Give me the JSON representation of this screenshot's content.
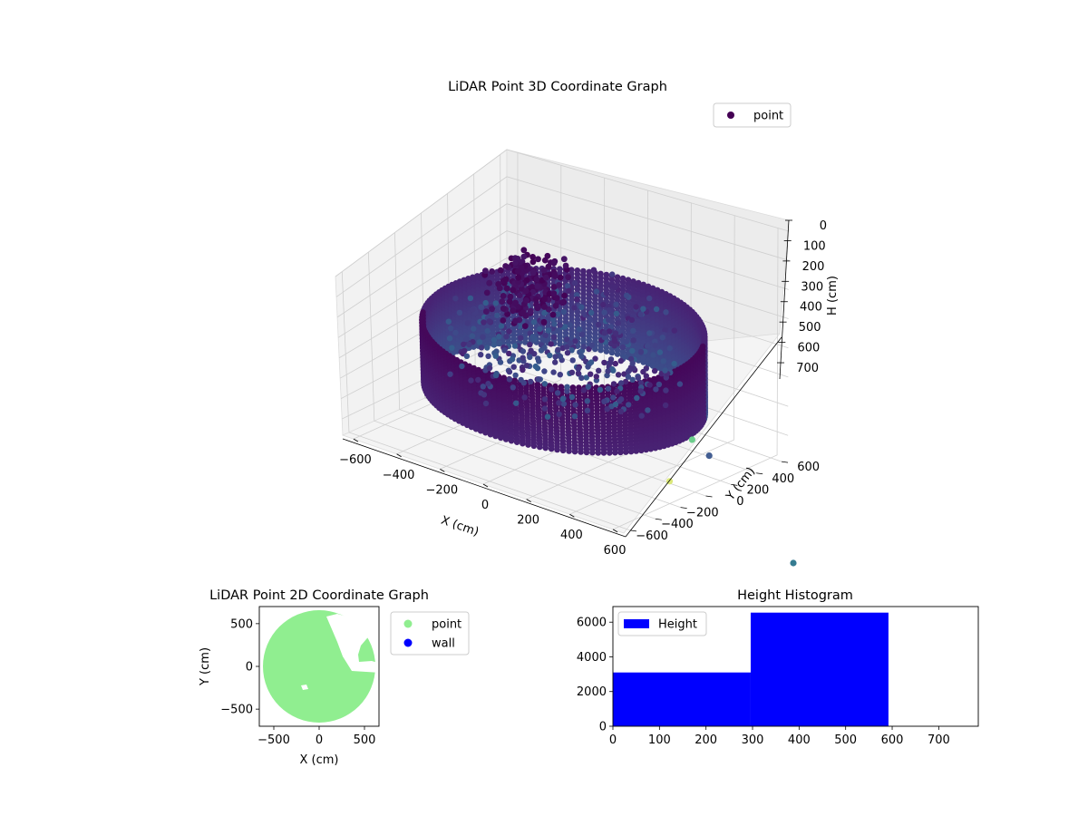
{
  "chart_data": [
    {
      "type": "scatter3d",
      "title": "LiDAR Point 3D Coordinate Graph",
      "xlabel": "X (cm)",
      "ylabel": "Y (cm)",
      "zlabel": "H (cm)",
      "xlim": [
        -650,
        650
      ],
      "ylim": [
        -650,
        650
      ],
      "zlim": [
        0,
        780
      ],
      "z_inverted": true,
      "x_ticks": [
        -600,
        -400,
        -200,
        0,
        200,
        400,
        600
      ],
      "y_ticks": [
        -600,
        -400,
        -200,
        0,
        200,
        400,
        600
      ],
      "z_ticks": [
        0,
        100,
        200,
        300,
        400,
        500,
        600,
        700
      ],
      "legend": {
        "position": "top-right",
        "entries": [
          {
            "label": "point",
            "color": "#440154"
          }
        ]
      },
      "colormap": "viridis",
      "grid": true,
      "wall_radius": 560,
      "wall_height_range": [
        300,
        590
      ],
      "outlier_points": [
        {
          "x": 560,
          "y": 50,
          "h": 600,
          "color": "#6ccd8c"
        },
        {
          "x": 520,
          "y": 250,
          "h": 720,
          "color": "#435e92"
        },
        {
          "x": 500,
          "y": -30,
          "h": 760,
          "color": "#dbe87a"
        }
      ],
      "floating_point": {
        "color": "#357c91"
      }
    },
    {
      "type": "scatter",
      "title": "LiDAR Point 2D Coordinate Graph",
      "xlabel": "X (cm)",
      "ylabel": "Y (cm)",
      "xlim": [
        -660,
        660
      ],
      "ylim": [
        -700,
        700
      ],
      "x_ticks": [
        -500,
        0,
        500
      ],
      "y_ticks": [
        -500,
        0,
        500
      ],
      "series": [
        {
          "name": "point",
          "color": "#90ee90"
        },
        {
          "name": "wall",
          "color": "#0000ff"
        }
      ],
      "disc_radius": 620,
      "legend": {
        "position": "outside-right"
      }
    },
    {
      "type": "bar",
      "title": "Height Histogram",
      "xlim": [
        0,
        785
      ],
      "ylim": [
        0,
        6900
      ],
      "x_ticks": [
        0,
        100,
        200,
        300,
        400,
        500,
        600,
        700
      ],
      "y_ticks": [
        0,
        2000,
        4000,
        6000
      ],
      "bins": [
        {
          "x0": 0,
          "x1": 296,
          "count": 3100
        },
        {
          "x0": 296,
          "x1": 592,
          "count": 6550
        }
      ],
      "series": [
        {
          "name": "Height",
          "color": "#0000ff"
        }
      ],
      "legend": {
        "position": "top-left"
      }
    }
  ]
}
